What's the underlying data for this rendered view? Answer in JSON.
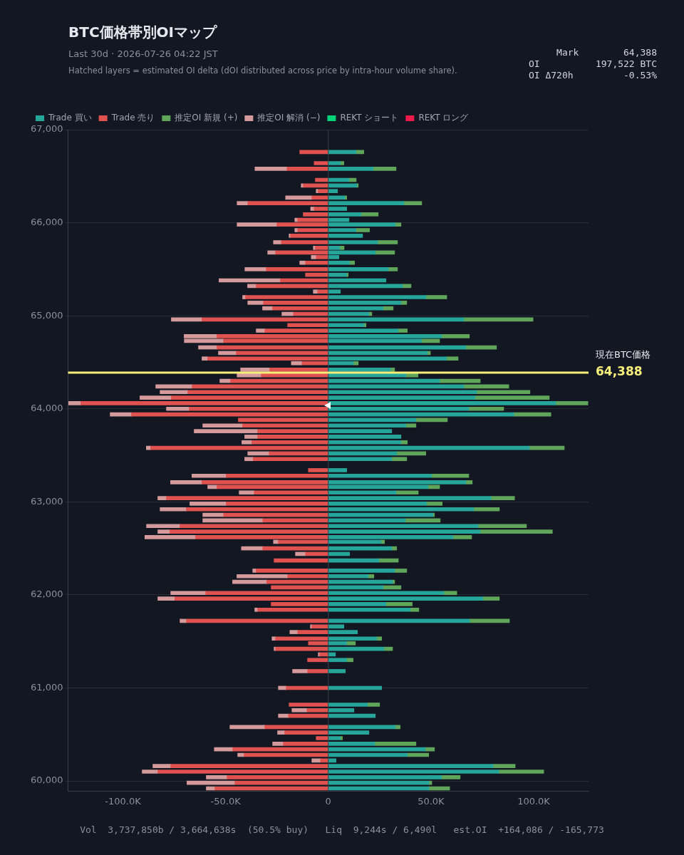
{
  "chart_data": {
    "type": "bar",
    "orientation": "horizontal",
    "stacked": true,
    "title": "BTC価格帯別OIマップ",
    "subtitle": "Last 30d · 2026-07-26 04:22 JST",
    "annotations": [
      "Hatched layers = estimated OI delta (dOI distributed across price by intra-hour volume share).",
      "Mark        64,388",
      "OI          197,522 BTC",
      "OI Δ720h         -0.53%",
      "Vol  3,737,850b / 3,664,638s  (50.5% buy)   Liq  9,244s / 6,490l   est.OI  +164,086 / -165,773",
      "64,388"
    ],
    "x": [
      66760,
      66640,
      66580,
      66460,
      66400,
      66340,
      66270,
      66210,
      66150,
      66090,
      66030,
      65980,
      65920,
      65860,
      65790,
      65730,
      65680,
      65630,
      65570,
      65500,
      65440,
      65380,
      65320,
      65260,
      65200,
      65140,
      65080,
      65020,
      64960,
      64900,
      64840,
      64780,
      64730,
      64660,
      64600,
      64540,
      64490,
      64420,
      64360,
      64300,
      64240,
      64180,
      64120,
      64060,
      64000,
      63940,
      63880,
      63820,
      63760,
      63700,
      63640,
      63580,
      63520,
      63460,
      63340,
      63280,
      63210,
      63160,
      63100,
      63040,
      62980,
      62920,
      62860,
      62800,
      62740,
      62680,
      62620,
      62570,
      62500,
      62440,
      62370,
      62260,
      62200,
      62140,
      62080,
      62020,
      61960,
      61900,
      61840,
      61720,
      61660,
      61600,
      61530,
      61480,
      61420,
      61360,
      61300,
      61180,
      61000,
      60820,
      60760,
      60700,
      60580,
      60520,
      60460,
      60400,
      60340,
      60280,
      60220,
      60160,
      60100,
      60040,
      59980,
      59920
    ],
    "series": [
      {
        "name": "Trade 買い",
        "color": "#26a69a",
        "values": [
          13500,
          5900,
          21900,
          10100,
          13900,
          4500,
          8000,
          36800,
          9000,
          16000,
          10100,
          32600,
          13500,
          16700,
          24000,
          5600,
          22900,
          5200,
          10400,
          29200,
          9000,
          28100,
          36100,
          5900,
          47600,
          35400,
          26700,
          19800,
          66000,
          17400,
          34000,
          55200,
          45500,
          67000,
          48300,
          57600,
          12200,
          30200,
          37800,
          54200,
          66000,
          72200,
          71500,
          110800,
          68400,
          90300,
          42700,
          37800,
          30900,
          35400,
          35400,
          97900,
          33300,
          30900,
          9000,
          50300,
          67000,
          48600,
          33000,
          79200,
          47900,
          70800,
          51000,
          37500,
          72900,
          74000,
          60800,
          25700,
          30900,
          10400,
          24700,
          32300,
          19400,
          31300,
          26700,
          56300,
          75300,
          28100,
          39900,
          68800,
          7600,
          14200,
          23600,
          9000,
          27100,
          3500,
          9000,
          8300,
          26000,
          19100,
          12500,
          22900,
          32600,
          19800,
          5900,
          22600,
          47200,
          38500,
          3800,
          80200,
          83000,
          55200,
          49000,
          49000
        ]
      },
      {
        "name": "Trade 売り",
        "color": "#e0524f",
        "values": [
          -13900,
          -6900,
          -20100,
          -6300,
          -12200,
          -4900,
          -8000,
          -39200,
          -6900,
          -12200,
          -14900,
          -25000,
          -14900,
          -18400,
          -22900,
          -6300,
          -25700,
          -5900,
          -11100,
          -30200,
          -11100,
          -23300,
          -35100,
          -5200,
          -40300,
          -31600,
          -27100,
          -17000,
          -61500,
          -19800,
          -30900,
          -54200,
          -51000,
          -54200,
          -44800,
          -58700,
          -12800,
          -28500,
          -32600,
          -47600,
          -66300,
          -68400,
          -76400,
          -120500,
          -67700,
          -95800,
          -43800,
          -41700,
          -34400,
          -34400,
          -37200,
          -86500,
          -28800,
          -36500,
          -9700,
          -49700,
          -61500,
          -54200,
          -36100,
          -78800,
          -49700,
          -69100,
          -51000,
          -31900,
          -72200,
          -77100,
          -64600,
          -24300,
          -31900,
          -11100,
          -26400,
          -35100,
          -19800,
          -29900,
          -27800,
          -59700,
          -74700,
          -27800,
          -34400,
          -69100,
          -8000,
          -14900,
          -25700,
          -9700,
          -25700,
          -4200,
          -10100,
          -10100,
          -20500,
          -19100,
          -10400,
          -19400,
          -30900,
          -21200,
          -5900,
          -21900,
          -46500,
          -41000,
          -3800,
          -76700,
          -83000,
          -49300,
          -45500,
          -55200
        ]
      },
      {
        "name": "推定OI 新規 (+)",
        "color": "#5fa55a",
        "values": [
          3800,
          1700,
          11100,
          3500,
          700,
          null,
          1000,
          8700,
          null,
          8300,
          null,
          2800,
          6600,
          null,
          9700,
          2100,
          9400,
          null,
          2400,
          4500,
          700,
          null,
          4200,
          null,
          10100,
          2800,
          4900,
          1400,
          33700,
          1000,
          4500,
          13500,
          8700,
          14900,
          1400,
          5600,
          2400,
          2100,
          5900,
          19800,
          21900,
          26000,
          36100,
          15600,
          17000,
          18100,
          15300,
          4900,
          null,
          null,
          3100,
          17000,
          14200,
          7300,
          null,
          18100,
          3100,
          5600,
          10800,
          11500,
          7600,
          12500,
          700,
          17000,
          23600,
          35100,
          9000,
          1700,
          2400,
          null,
          9400,
          5900,
          2800,
          1000,
          8700,
          6300,
          8000,
          12800,
          4200,
          19400,
          null,
          null,
          2400,
          4200,
          4200,
          null,
          3100,
          null,
          null,
          5900,
          null,
          null,
          2400,
          null,
          1000,
          20100,
          4500,
          10400,
          null,
          10800,
          21900,
          9000,
          1400,
          10100
        ]
      },
      {
        "name": "推定OI 解消 (−)",
        "color": "#d49a9c",
        "values": [
          null,
          null,
          -15600,
          null,
          -1000,
          -1000,
          -12800,
          -5200,
          -1700,
          null,
          -1400,
          -19400,
          -1400,
          -700,
          -3800,
          -1000,
          -3800,
          -2400,
          -2800,
          -10400,
          null,
          -29900,
          -4200,
          -2100,
          -1400,
          -7600,
          -4900,
          -5600,
          -14900,
          null,
          -4200,
          -16000,
          -19100,
          -9000,
          -8700,
          -2800,
          -5200,
          -14200,
          -11800,
          -5200,
          -17700,
          -13500,
          -15300,
          -5900,
          -11100,
          -10400,
          null,
          -19400,
          -30900,
          -6300,
          -4900,
          -2100,
          -10400,
          -4200,
          null,
          -16700,
          -15300,
          -4500,
          -7300,
          -4200,
          -17700,
          -12800,
          -10100,
          -29200,
          -16300,
          -5900,
          -24700,
          -2400,
          -10400,
          -4900,
          null,
          -1700,
          -24700,
          -16700,
          null,
          -17000,
          -8300,
          null,
          -1400,
          -3100,
          -700,
          -3800,
          -1700,
          null,
          -700,
          -700,
          null,
          -7300,
          -3800,
          null,
          -7300,
          -4900,
          -17000,
          -3500,
          null,
          -5200,
          -9000,
          -3100,
          -4200,
          -8700,
          -7600,
          -10100,
          -23300,
          -4200
        ]
      },
      {
        "name": "REKT ショート",
        "color": "#00d27a",
        "values": [
          null,
          null,
          null,
          null,
          null,
          null,
          null,
          null,
          null,
          null,
          null,
          null,
          null,
          null,
          null,
          null,
          null,
          null,
          null,
          null,
          null,
          null,
          null,
          null,
          null,
          null,
          null,
          null,
          null,
          null,
          null,
          null,
          null,
          null,
          null,
          null,
          null,
          null,
          null,
          null,
          null,
          null,
          null,
          null,
          null,
          null,
          null,
          null,
          null,
          null,
          null,
          null,
          null,
          null,
          null,
          null,
          null,
          null,
          null,
          null,
          null,
          null,
          null,
          null,
          null,
          null,
          null,
          null,
          null,
          null,
          null,
          null,
          null,
          null,
          null,
          null,
          null,
          null,
          null,
          null,
          null,
          null,
          null,
          null,
          null,
          null,
          null,
          null,
          null,
          null,
          null,
          null,
          null,
          null,
          null,
          null,
          null,
          null,
          null,
          null,
          null,
          null,
          null,
          null
        ]
      },
      {
        "name": "REKT ロング",
        "color": "#f0194b",
        "values": [
          null,
          null,
          null,
          null,
          null,
          null,
          null,
          null,
          null,
          null,
          null,
          null,
          null,
          null,
          null,
          null,
          null,
          null,
          null,
          null,
          null,
          null,
          null,
          null,
          null,
          null,
          null,
          null,
          null,
          null,
          null,
          null,
          null,
          null,
          null,
          null,
          null,
          null,
          null,
          null,
          null,
          null,
          null,
          null,
          null,
          null,
          null,
          null,
          null,
          null,
          null,
          null,
          null,
          null,
          null,
          null,
          null,
          null,
          null,
          null,
          null,
          null,
          null,
          null,
          null,
          null,
          null,
          null,
          null,
          null,
          null,
          null,
          null,
          null,
          null,
          null,
          null,
          null,
          null,
          null,
          null,
          null,
          null,
          null,
          null,
          null,
          null,
          null,
          null,
          null,
          null,
          null,
          null,
          null,
          null,
          null,
          null,
          null,
          null,
          null,
          null,
          null,
          null,
          null
        ]
      }
    ],
    "xlim": [
      -126700,
      126700
    ],
    "xticks": [
      {
        "value": -100000,
        "label": "-100.0K"
      },
      {
        "value": -50000,
        "label": "-50.0K"
      },
      0,
      {
        "value": 50000,
        "label": "50.0K"
      },
      {
        "value": 100000,
        "label": "100.0K"
      }
    ],
    "ylim": [
      59890,
      67000
    ],
    "yticks": [
      {
        "value": 60000,
        "label": "60,000"
      },
      {
        "value": 61000,
        "label": "61,000"
      },
      {
        "value": 62000,
        "label": "62,000"
      },
      {
        "value": 63000,
        "label": "63,000"
      },
      {
        "value": 64000,
        "label": "64,000"
      },
      {
        "value": 65000,
        "label": "65,000"
      },
      {
        "value": 66000,
        "label": "66,000"
      },
      {
        "value": 67000,
        "label": "67,000"
      }
    ],
    "ref_lines": [
      {
        "axis": "y",
        "value": 64388,
        "label": "現在BTC価格",
        "color": "#f7ef7a"
      }
    ],
    "grid": "y",
    "legend": "top left"
  }
}
